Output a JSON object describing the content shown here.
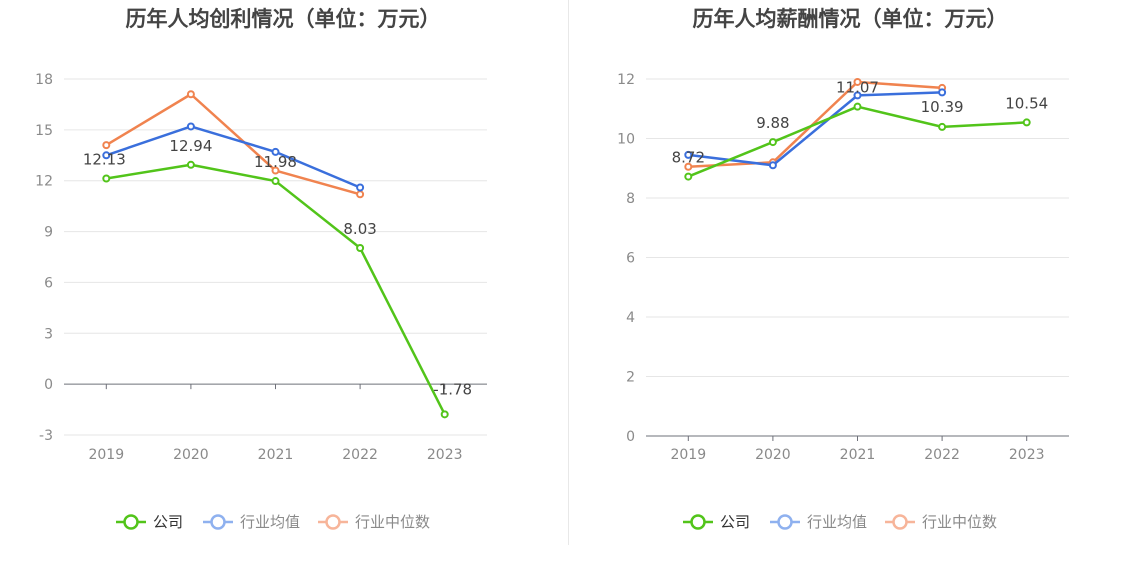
{
  "chart_data": [
    {
      "type": "line",
      "title": "历年人均创利情况（单位：万元）",
      "categories": [
        "2019",
        "2020",
        "2021",
        "2022",
        "2023"
      ],
      "ylim": [
        -3,
        18
      ],
      "yticks": [
        -3,
        0,
        3,
        6,
        9,
        12,
        15,
        18
      ],
      "grid": true,
      "legend_position": "bottom",
      "series": [
        {
          "name": "公司",
          "color": "#52c41a",
          "values": [
            12.13,
            12.94,
            11.98,
            8.03,
            -1.78
          ],
          "labels": [
            "12.13",
            "12.94",
            "11.98",
            "8.03",
            "-1.78"
          ]
        },
        {
          "name": "行业均值",
          "color": "#3a6fdc",
          "values": [
            13.5,
            15.2,
            13.7,
            11.6,
            null
          ],
          "labels": []
        },
        {
          "name": "行业中位数",
          "color": "#f0834f",
          "values": [
            14.1,
            17.1,
            12.6,
            11.2,
            null
          ],
          "labels": []
        }
      ]
    },
    {
      "type": "line",
      "title": "历年人均薪酬情况（单位：万元）",
      "categories": [
        "2019",
        "2020",
        "2021",
        "2022",
        "2023"
      ],
      "ylim": [
        0,
        12
      ],
      "yticks": [
        0,
        2,
        4,
        6,
        8,
        10,
        12
      ],
      "grid": true,
      "legend_position": "bottom",
      "series": [
        {
          "name": "公司",
          "color": "#52c41a",
          "values": [
            8.72,
            9.88,
            11.07,
            10.39,
            10.54
          ],
          "labels": [
            "8.72",
            "9.88",
            "11.07",
            "10.39",
            "10.54"
          ]
        },
        {
          "name": "行业均值",
          "color": "#3a6fdc",
          "values": [
            9.45,
            9.1,
            11.45,
            11.55,
            null
          ],
          "labels": []
        },
        {
          "name": "行业中位数",
          "color": "#f0834f",
          "values": [
            9.05,
            9.2,
            11.9,
            11.7,
            null
          ],
          "labels": []
        }
      ]
    }
  ],
  "legend_colors_light": [
    "#52c41a",
    "#8fb1ef",
    "#f7b59a"
  ]
}
